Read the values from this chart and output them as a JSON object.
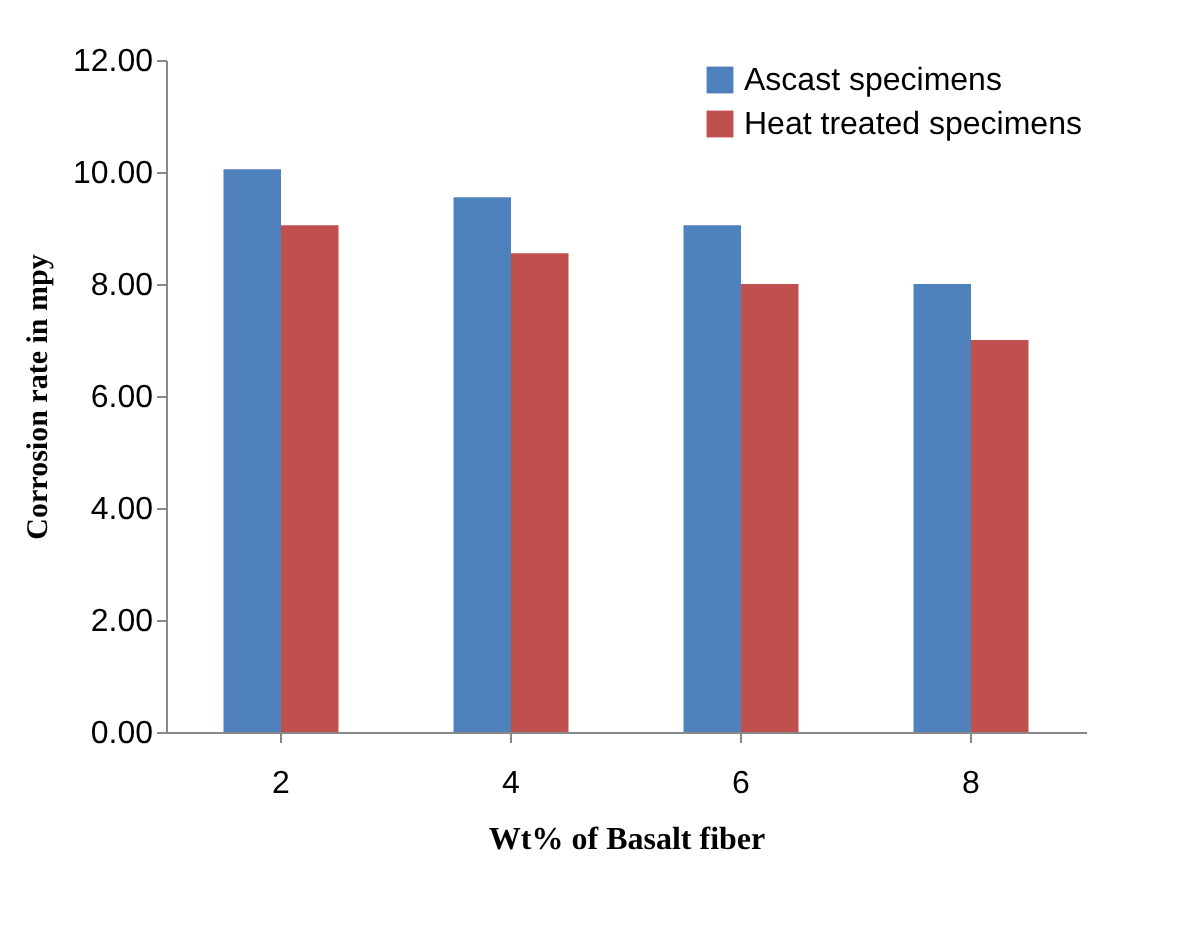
{
  "chart_data": {
    "type": "bar",
    "xlabel": "Wt% of Basalt fiber",
    "ylabel": "Corrosion rate in mpy",
    "categories": [
      "2",
      "4",
      "6",
      "8"
    ],
    "series": [
      {
        "name": "Ascast specimens",
        "color": "#4f81bd",
        "values": [
          10.05,
          9.55,
          9.05,
          8.0
        ]
      },
      {
        "name": "Heat treated specimens",
        "color": "#c0504d",
        "values": [
          9.05,
          8.55,
          8.0,
          7.0
        ]
      }
    ],
    "ylim": [
      0,
      12
    ],
    "yticks": [
      {
        "value": 0,
        "label": "0.00"
      },
      {
        "value": 2,
        "label": "2.00"
      },
      {
        "value": 4,
        "label": "4.00"
      },
      {
        "value": 6,
        "label": "6.00"
      },
      {
        "value": 8,
        "label": "8.00"
      },
      {
        "value": 10,
        "label": "10.00"
      },
      {
        "value": 12,
        "label": "12.00"
      }
    ],
    "grid": false,
    "legend": "top right"
  }
}
